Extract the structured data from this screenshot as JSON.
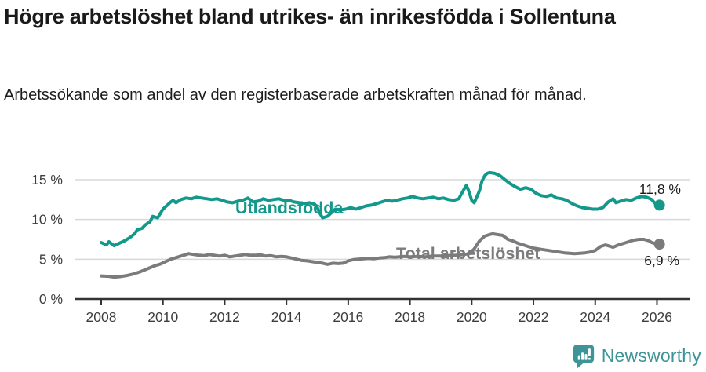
{
  "header": {
    "title": "Högre arbetslöshet bland utrikes- än inrikesfödda i Sollentuna",
    "subtitle": "Arbetssökande som andel av den registerbaserade arbetskraften månad för månad."
  },
  "footer": {
    "brand": "Newsworthy",
    "logo_icon": "bar-chart-speech-bubble-icon",
    "brand_color": "#3e9598"
  },
  "colors": {
    "series_utlandsfodda": "#13998c",
    "series_total": "#7b7b7d",
    "grid": "#d8d8d8",
    "axis": "#333333",
    "tick_text": "#3d3d3d",
    "value_text": "#1a1a1a"
  },
  "chart_data": {
    "type": "line",
    "title": "Högre arbetslöshet bland utrikes- än inrikesfödda i Sollentuna",
    "subtitle": "Arbetssökande som andel av den registerbaserade arbetskraften månad för månad.",
    "unit": "%",
    "grid": "horizontal",
    "legend": "inline-labels",
    "x_axis": {
      "range": [
        2007.1,
        2027.1
      ],
      "ticks": [
        {
          "value": 2008,
          "label": "2008"
        },
        {
          "value": 2010,
          "label": "2010"
        },
        {
          "value": 2012,
          "label": "2012"
        },
        {
          "value": 2014,
          "label": "2014"
        },
        {
          "value": 2016,
          "label": "2016"
        },
        {
          "value": 2018,
          "label": "2018"
        },
        {
          "value": 2020,
          "label": "2020"
        },
        {
          "value": 2022,
          "label": "2022"
        },
        {
          "value": 2024,
          "label": "2024"
        },
        {
          "value": 2026,
          "label": "2026"
        }
      ]
    },
    "y_axis": {
      "range": [
        0,
        16.5
      ],
      "ticks": [
        {
          "value": 0,
          "label": "0 %"
        },
        {
          "value": 5,
          "label": "5 %"
        },
        {
          "value": 10,
          "label": "10 %"
        },
        {
          "value": 15,
          "label": "15 %"
        }
      ]
    },
    "series": [
      {
        "name": "Utlandsfödda",
        "color": "#13998c",
        "end_label": "11,8 %",
        "end_value": 11.8,
        "points": [
          [
            2008,
            7.1
          ],
          [
            2008.17,
            6.8
          ],
          [
            2008.25,
            7.2
          ],
          [
            2008.42,
            6.7
          ],
          [
            2008.58,
            7
          ],
          [
            2008.75,
            7.3
          ],
          [
            2008.92,
            7.7
          ],
          [
            2009.08,
            8.2
          ],
          [
            2009.17,
            8.7
          ],
          [
            2009.33,
            8.9
          ],
          [
            2009.42,
            9.3
          ],
          [
            2009.58,
            9.7
          ],
          [
            2009.67,
            10.4
          ],
          [
            2009.83,
            10.2
          ],
          [
            2009.92,
            10.8
          ],
          [
            2010,
            11.3
          ],
          [
            2010.17,
            11.9
          ],
          [
            2010.25,
            12.2
          ],
          [
            2010.33,
            12.4
          ],
          [
            2010.42,
            12.1
          ],
          [
            2010.58,
            12.5
          ],
          [
            2010.75,
            12.7
          ],
          [
            2010.92,
            12.6
          ],
          [
            2011.08,
            12.8
          ],
          [
            2011.25,
            12.7
          ],
          [
            2011.42,
            12.6
          ],
          [
            2011.58,
            12.5
          ],
          [
            2011.75,
            12.6
          ],
          [
            2011.92,
            12.4
          ],
          [
            2012.08,
            12.2
          ],
          [
            2012.25,
            12.1
          ],
          [
            2012.42,
            12.3
          ],
          [
            2012.58,
            12.4
          ],
          [
            2012.75,
            12.7
          ],
          [
            2012.92,
            12.2
          ],
          [
            2013.08,
            12.3
          ],
          [
            2013.25,
            12.6
          ],
          [
            2013.42,
            12.4
          ],
          [
            2013.58,
            12.5
          ],
          [
            2013.75,
            12.6
          ],
          [
            2013.92,
            12.4
          ],
          [
            2014.08,
            12.4
          ],
          [
            2014.25,
            12.2
          ],
          [
            2014.42,
            12.1
          ],
          [
            2014.58,
            12
          ],
          [
            2014.75,
            12.1
          ],
          [
            2014.92,
            11.9
          ],
          [
            2015,
            11.5
          ],
          [
            2015.08,
            10.8
          ],
          [
            2015.17,
            10.2
          ],
          [
            2015.33,
            10.4
          ],
          [
            2015.5,
            11
          ],
          [
            2015.58,
            11.3
          ],
          [
            2015.75,
            11.2
          ],
          [
            2015.92,
            11.3
          ],
          [
            2016.08,
            11.5
          ],
          [
            2016.25,
            11.3
          ],
          [
            2016.42,
            11.5
          ],
          [
            2016.58,
            11.7
          ],
          [
            2016.75,
            11.8
          ],
          [
            2016.92,
            12
          ],
          [
            2017.08,
            12.2
          ],
          [
            2017.25,
            12.4
          ],
          [
            2017.42,
            12.3
          ],
          [
            2017.58,
            12.4
          ],
          [
            2017.75,
            12.6
          ],
          [
            2017.92,
            12.7
          ],
          [
            2018.08,
            12.9
          ],
          [
            2018.25,
            12.7
          ],
          [
            2018.42,
            12.6
          ],
          [
            2018.58,
            12.7
          ],
          [
            2018.75,
            12.8
          ],
          [
            2018.92,
            12.6
          ],
          [
            2019.08,
            12.7
          ],
          [
            2019.25,
            12.5
          ],
          [
            2019.42,
            12.4
          ],
          [
            2019.58,
            12.6
          ],
          [
            2019.75,
            13.8
          ],
          [
            2019.83,
            14.3
          ],
          [
            2019.92,
            13.4
          ],
          [
            2020,
            12.4
          ],
          [
            2020.08,
            12.1
          ],
          [
            2020.25,
            13.6
          ],
          [
            2020.33,
            14.8
          ],
          [
            2020.42,
            15.5
          ],
          [
            2020.5,
            15.8
          ],
          [
            2020.58,
            15.9
          ],
          [
            2020.75,
            15.8
          ],
          [
            2020.92,
            15.5
          ],
          [
            2021.08,
            15
          ],
          [
            2021.25,
            14.5
          ],
          [
            2021.42,
            14.1
          ],
          [
            2021.58,
            13.8
          ],
          [
            2021.75,
            14
          ],
          [
            2021.92,
            13.8
          ],
          [
            2022.08,
            13.3
          ],
          [
            2022.25,
            13
          ],
          [
            2022.42,
            12.9
          ],
          [
            2022.58,
            13.1
          ],
          [
            2022.75,
            12.7
          ],
          [
            2022.92,
            12.6
          ],
          [
            2023.08,
            12.4
          ],
          [
            2023.25,
            12
          ],
          [
            2023.42,
            11.7
          ],
          [
            2023.58,
            11.5
          ],
          [
            2023.75,
            11.4
          ],
          [
            2023.92,
            11.3
          ],
          [
            2024.08,
            11.3
          ],
          [
            2024.25,
            11.5
          ],
          [
            2024.42,
            12.2
          ],
          [
            2024.58,
            12.6
          ],
          [
            2024.67,
            12.1
          ],
          [
            2024.83,
            12.3
          ],
          [
            2025,
            12.5
          ],
          [
            2025.17,
            12.4
          ],
          [
            2025.33,
            12.7
          ],
          [
            2025.5,
            12.9
          ],
          [
            2025.67,
            12.8
          ],
          [
            2025.83,
            12.5
          ],
          [
            2025.92,
            12.1
          ],
          [
            2026,
            11.9
          ],
          [
            2026.08,
            11.8
          ]
        ]
      },
      {
        "name": "Total arbetslöshet",
        "color": "#7b7b7d",
        "end_label": "6,9 %",
        "end_value": 6.9,
        "points": [
          [
            2008,
            2.9
          ],
          [
            2008.25,
            2.85
          ],
          [
            2008.42,
            2.75
          ],
          [
            2008.58,
            2.8
          ],
          [
            2008.83,
            2.95
          ],
          [
            2009,
            3.1
          ],
          [
            2009.25,
            3.4
          ],
          [
            2009.5,
            3.8
          ],
          [
            2009.75,
            4.2
          ],
          [
            2009.92,
            4.4
          ],
          [
            2010.08,
            4.7
          ],
          [
            2010.25,
            5
          ],
          [
            2010.42,
            5.2
          ],
          [
            2010.58,
            5.4
          ],
          [
            2010.75,
            5.6
          ],
          [
            2010.83,
            5.7
          ],
          [
            2011,
            5.6
          ],
          [
            2011.17,
            5.5
          ],
          [
            2011.33,
            5.45
          ],
          [
            2011.5,
            5.6
          ],
          [
            2011.67,
            5.5
          ],
          [
            2011.83,
            5.4
          ],
          [
            2012,
            5.5
          ],
          [
            2012.17,
            5.3
          ],
          [
            2012.33,
            5.4
          ],
          [
            2012.5,
            5.5
          ],
          [
            2012.67,
            5.6
          ],
          [
            2012.83,
            5.5
          ],
          [
            2013,
            5.5
          ],
          [
            2013.17,
            5.55
          ],
          [
            2013.33,
            5.4
          ],
          [
            2013.5,
            5.45
          ],
          [
            2013.67,
            5.3
          ],
          [
            2013.83,
            5.35
          ],
          [
            2014,
            5.3
          ],
          [
            2014.17,
            5.15
          ],
          [
            2014.33,
            5
          ],
          [
            2014.5,
            4.85
          ],
          [
            2014.67,
            4.8
          ],
          [
            2014.83,
            4.7
          ],
          [
            2015,
            4.6
          ],
          [
            2015.17,
            4.5
          ],
          [
            2015.33,
            4.35
          ],
          [
            2015.5,
            4.5
          ],
          [
            2015.67,
            4.45
          ],
          [
            2015.83,
            4.5
          ],
          [
            2016,
            4.8
          ],
          [
            2016.17,
            4.95
          ],
          [
            2016.33,
            5
          ],
          [
            2016.5,
            5.05
          ],
          [
            2016.67,
            5.1
          ],
          [
            2016.83,
            5.05
          ],
          [
            2017,
            5.15
          ],
          [
            2017.17,
            5.2
          ],
          [
            2017.33,
            5.3
          ],
          [
            2017.5,
            5.25
          ],
          [
            2017.67,
            5.3
          ],
          [
            2017.83,
            5.35
          ],
          [
            2018,
            5.3
          ],
          [
            2018.25,
            5.35
          ],
          [
            2018.5,
            5.3
          ],
          [
            2018.75,
            5.4
          ],
          [
            2019,
            5.4
          ],
          [
            2019.25,
            5.45
          ],
          [
            2019.5,
            5.5
          ],
          [
            2019.75,
            5.6
          ],
          [
            2019.92,
            5.7
          ],
          [
            2020.08,
            6.3
          ],
          [
            2020.25,
            7.3
          ],
          [
            2020.42,
            7.9
          ],
          [
            2020.58,
            8.1
          ],
          [
            2020.67,
            8.2
          ],
          [
            2020.83,
            8.1
          ],
          [
            2021,
            8
          ],
          [
            2021.17,
            7.5
          ],
          [
            2021.33,
            7.3
          ],
          [
            2021.5,
            7
          ],
          [
            2021.67,
            6.8
          ],
          [
            2021.83,
            6.6
          ],
          [
            2022,
            6.4
          ],
          [
            2022.17,
            6.3
          ],
          [
            2022.33,
            6.2
          ],
          [
            2022.5,
            6.1
          ],
          [
            2022.67,
            6
          ],
          [
            2022.83,
            5.9
          ],
          [
            2023,
            5.8
          ],
          [
            2023.17,
            5.75
          ],
          [
            2023.33,
            5.7
          ],
          [
            2023.5,
            5.75
          ],
          [
            2023.67,
            5.8
          ],
          [
            2023.83,
            5.9
          ],
          [
            2024,
            6.1
          ],
          [
            2024.17,
            6.6
          ],
          [
            2024.33,
            6.8
          ],
          [
            2024.5,
            6.6
          ],
          [
            2024.58,
            6.5
          ],
          [
            2024.75,
            6.8
          ],
          [
            2024.92,
            7
          ],
          [
            2025.08,
            7.2
          ],
          [
            2025.25,
            7.4
          ],
          [
            2025.42,
            7.5
          ],
          [
            2025.58,
            7.5
          ],
          [
            2025.75,
            7.3
          ],
          [
            2025.83,
            7.1
          ],
          [
            2025.92,
            7
          ],
          [
            2026,
            7.1
          ],
          [
            2026.08,
            6.9
          ]
        ]
      }
    ]
  }
}
